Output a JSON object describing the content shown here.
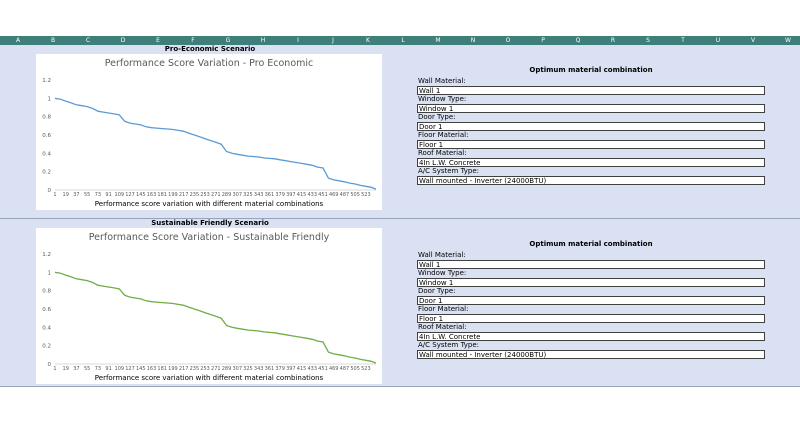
{
  "columns": [
    "A",
    "B",
    "C",
    "D",
    "E",
    "F",
    "G",
    "H",
    "I",
    "J",
    "K",
    "L",
    "M",
    "N",
    "O",
    "P",
    "Q",
    "R",
    "S",
    "T",
    "U",
    "V",
    "W"
  ],
  "scenarios": [
    {
      "heading": "Pro-Economic Scenario",
      "optimum_title": "Optimum material combination",
      "fields": [
        {
          "label": "Wall Material:",
          "value": "Wall 1"
        },
        {
          "label": "Window Type:",
          "value": "Window 1"
        },
        {
          "label": "Door Type:",
          "value": "Door 1"
        },
        {
          "label": "Floor Material:",
          "value": "Floor 1"
        },
        {
          "label": "Roof Material:",
          "value": "4In L.W. Concrete"
        },
        {
          "label": "A/C System Type:",
          "value": "Wall mounted - Inverter (24000BTU)"
        }
      ]
    },
    {
      "heading": "Sustainable Friendly Scenario",
      "optimum_title": "Optimum material combination",
      "fields": [
        {
          "label": "Wall Material:",
          "value": "Wall 1"
        },
        {
          "label": "Window Type:",
          "value": "Window 1"
        },
        {
          "label": "Door Type:",
          "value": "Door 1"
        },
        {
          "label": "Floor Material:",
          "value": "Floor 1"
        },
        {
          "label": "Roof Material:",
          "value": "4In L.W. Concrete"
        },
        {
          "label": "A/C System Type:",
          "value": "Wall mounted - Inverter (24000BTU)"
        }
      ]
    }
  ],
  "chart_data": [
    {
      "type": "line",
      "title": "Performance Score Variation - Pro Economic",
      "xlabel": "Performance score variation with different material combinations",
      "ylabel": "",
      "ylim": [
        0,
        1.2
      ],
      "yticks": [
        "0",
        "0.2",
        "0.4",
        "0.6",
        "0.8",
        "1",
        "1.2"
      ],
      "xticks": [
        "1",
        "19",
        "37",
        "55",
        "73",
        "91",
        "109",
        "127",
        "145",
        "163",
        "181",
        "199",
        "217",
        "235",
        "253",
        "271",
        "289",
        "307",
        "325",
        "343",
        "361",
        "379",
        "397",
        "415",
        "433",
        "451",
        "469",
        "487",
        "505",
        "523"
      ],
      "xlim": [
        1,
        540
      ],
      "grid": false,
      "color": "#5b9bd5",
      "series": [
        {
          "x": [
            1,
            10,
            19,
            28,
            37,
            46,
            55,
            64,
            73,
            82,
            91,
            100,
            109,
            118,
            127,
            136,
            145,
            154,
            163,
            172,
            181,
            190,
            199,
            208,
            217,
            226,
            235,
            244,
            253,
            262,
            271,
            280,
            289,
            298,
            307,
            316,
            325,
            334,
            343,
            352,
            361,
            370,
            379,
            388,
            397,
            406,
            415,
            424,
            433,
            442,
            451,
            460,
            469,
            478,
            487,
            496,
            505,
            514,
            523,
            532,
            540
          ],
          "y": [
            1.0,
            0.99,
            0.97,
            0.95,
            0.93,
            0.92,
            0.91,
            0.89,
            0.86,
            0.85,
            0.84,
            0.83,
            0.82,
            0.75,
            0.73,
            0.72,
            0.71,
            0.69,
            0.68,
            0.675,
            0.67,
            0.665,
            0.66,
            0.65,
            0.64,
            0.62,
            0.6,
            0.58,
            0.56,
            0.54,
            0.52,
            0.5,
            0.42,
            0.4,
            0.39,
            0.38,
            0.37,
            0.365,
            0.36,
            0.35,
            0.345,
            0.34,
            0.33,
            0.32,
            0.31,
            0.3,
            0.29,
            0.28,
            0.27,
            0.25,
            0.24,
            0.13,
            0.11,
            0.1,
            0.09,
            0.075,
            0.065,
            0.05,
            0.04,
            0.03,
            0.01
          ]
        }
      ]
    },
    {
      "type": "line",
      "title": "Performance Score Variation - Sustainable Friendly",
      "xlabel": "Performance score variation with different material combinations",
      "ylabel": "",
      "ylim": [
        0,
        1.2
      ],
      "yticks": [
        "0",
        "0.2",
        "0.4",
        "0.6",
        "0.8",
        "1",
        "1.2"
      ],
      "xticks": [
        "1",
        "19",
        "37",
        "55",
        "73",
        "91",
        "109",
        "127",
        "145",
        "163",
        "181",
        "199",
        "217",
        "235",
        "253",
        "271",
        "289",
        "307",
        "325",
        "343",
        "361",
        "379",
        "397",
        "415",
        "433",
        "451",
        "469",
        "487",
        "505",
        "523"
      ],
      "xlim": [
        1,
        540
      ],
      "grid": false,
      "color": "#70ad47",
      "series": [
        {
          "x": [
            1,
            10,
            19,
            28,
            37,
            46,
            55,
            64,
            73,
            82,
            91,
            100,
            109,
            118,
            127,
            136,
            145,
            154,
            163,
            172,
            181,
            190,
            199,
            208,
            217,
            226,
            235,
            244,
            253,
            262,
            271,
            280,
            289,
            298,
            307,
            316,
            325,
            334,
            343,
            352,
            361,
            370,
            379,
            388,
            397,
            406,
            415,
            424,
            433,
            442,
            451,
            460,
            469,
            478,
            487,
            496,
            505,
            514,
            523,
            532,
            540
          ],
          "y": [
            1.0,
            0.99,
            0.97,
            0.95,
            0.93,
            0.92,
            0.91,
            0.89,
            0.86,
            0.85,
            0.84,
            0.83,
            0.82,
            0.75,
            0.73,
            0.72,
            0.71,
            0.69,
            0.68,
            0.675,
            0.67,
            0.665,
            0.66,
            0.65,
            0.64,
            0.62,
            0.6,
            0.58,
            0.56,
            0.54,
            0.52,
            0.5,
            0.42,
            0.4,
            0.39,
            0.38,
            0.37,
            0.365,
            0.36,
            0.35,
            0.345,
            0.34,
            0.33,
            0.32,
            0.31,
            0.3,
            0.29,
            0.28,
            0.27,
            0.25,
            0.24,
            0.13,
            0.11,
            0.1,
            0.09,
            0.075,
            0.065,
            0.05,
            0.04,
            0.03,
            0.01
          ]
        }
      ]
    }
  ]
}
